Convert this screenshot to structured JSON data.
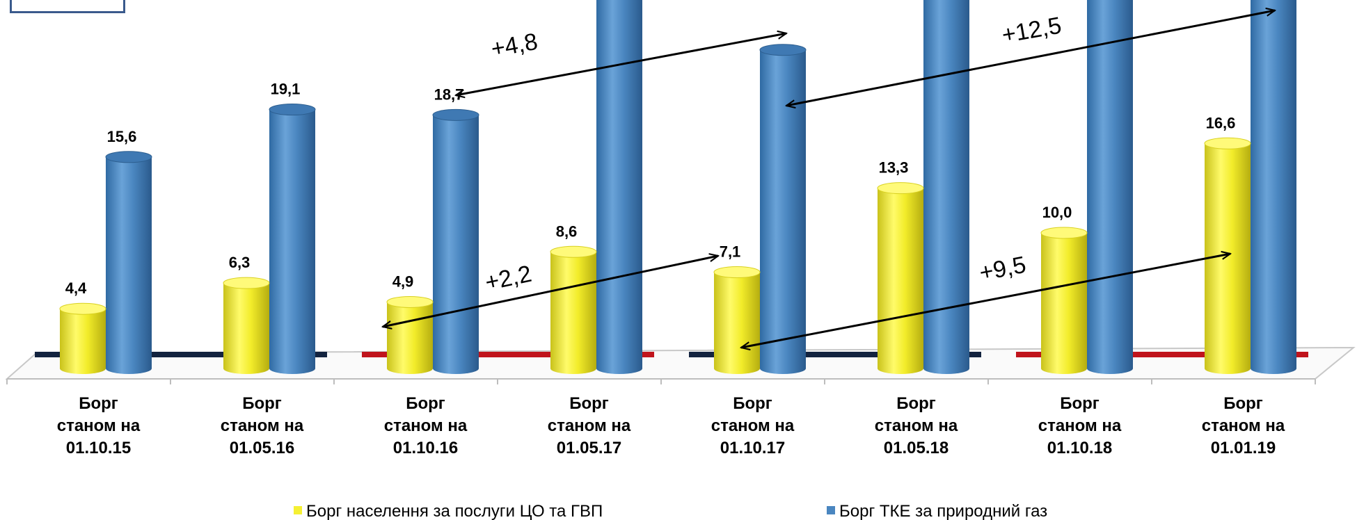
{
  "chart_data": {
    "type": "bar",
    "categories": [
      [
        "Борг",
        "станом на",
        "01.10.15"
      ],
      [
        "Борг",
        "станом на",
        "01.05.16"
      ],
      [
        "Борг",
        "станом на",
        "01.10.16"
      ],
      [
        "Борг",
        "станом на",
        "01.05.17"
      ],
      [
        "Борг",
        "станом на",
        "01.10.17"
      ],
      [
        "Борг",
        "станом на",
        "01.05.18"
      ],
      [
        "Борг",
        "станом на",
        "01.10.18"
      ],
      [
        "Борг",
        "станом на",
        "01.01.19"
      ]
    ],
    "series": [
      {
        "name": "Борг населення за послуги ЦО та ГВП",
        "color": "#f5f033",
        "values": [
          4.4,
          6.3,
          4.9,
          8.6,
          7.1,
          13.3,
          10.0,
          16.6
        ],
        "labels": [
          "4,4",
          "6,3",
          "4,9",
          "8,6",
          "7,1",
          "13,3",
          "10,0",
          "16,6"
        ]
      },
      {
        "name": "Борг ТКЕ за природний газ",
        "color": "#4a86c0",
        "values": [
          15.6,
          19.1,
          18.7,
          34.0,
          23.5,
          34.0,
          36.0,
          36.0
        ],
        "labels": [
          "15,6",
          "19,1",
          "18,7",
          "",
          "",
          "",
          "",
          ""
        ]
      }
    ],
    "annotations": [
      {
        "text": "+4,8",
        "from": {
          "series": 1,
          "index": 2
        },
        "to": {
          "series": 1,
          "index": 4
        }
      },
      {
        "text": "+12,5",
        "from": {
          "series": 1,
          "index": 4
        },
        "to": {
          "series": 1,
          "index": 7
        }
      },
      {
        "text": "+2,2",
        "from": {
          "series": 0,
          "index": 2
        },
        "to": {
          "series": 0,
          "index": 4
        }
      },
      {
        "text": "+9,5",
        "from": {
          "series": 0,
          "index": 4
        },
        "to": {
          "series": 0,
          "index": 7
        }
      }
    ],
    "period_lines": [
      {
        "from_index": 0,
        "to_index": 1,
        "color": "#13233f"
      },
      {
        "from_index": 2,
        "to_index": 3,
        "color": "#c0141c"
      },
      {
        "from_index": 4,
        "to_index": 5,
        "color": "#13233f"
      },
      {
        "from_index": 6,
        "to_index": 7,
        "color": "#c0141c"
      }
    ],
    "legend_position": "bottom",
    "grid": false
  }
}
